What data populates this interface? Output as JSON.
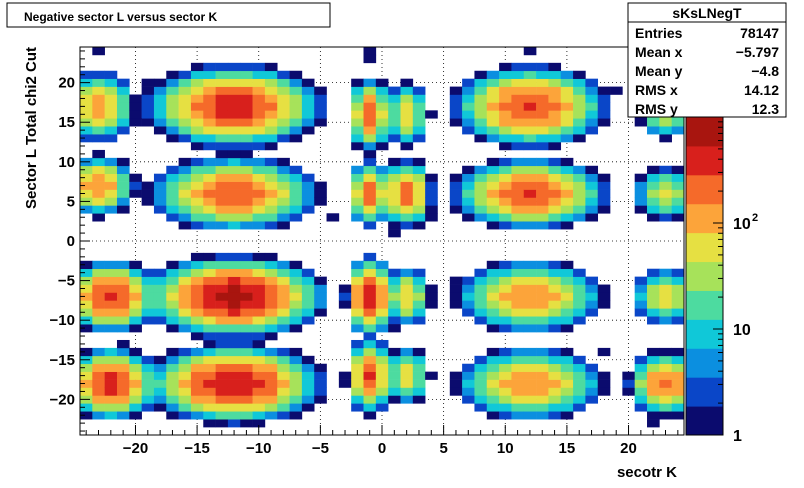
{
  "title": "Negative sector L versus sector K",
  "stats": {
    "name": "sKsLNegT",
    "rows": [
      {
        "label": "Entries",
        "value": "78147"
      },
      {
        "label": "Mean x",
        "value": "−5.797"
      },
      {
        "label": "Mean y",
        "value": "−4.8"
      },
      {
        "label": "RMS x",
        "value": "14.12"
      },
      {
        "label": "RMS y",
        "value": "12.3"
      }
    ]
  },
  "chart_data": {
    "type": "heatmap",
    "title": "Negative sector L versus sector K",
    "xlabel": "secotr K",
    "ylabel": "Sector L  Total chi2 Cut",
    "xlim": [
      -24.5,
      24.5
    ],
    "ylim": [
      -24.5,
      24.5
    ],
    "x_ticks": [
      -20,
      -15,
      -10,
      -5,
      0,
      5,
      10,
      15,
      20
    ],
    "y_ticks": [
      -20,
      -15,
      -10,
      -5,
      0,
      5,
      10,
      15,
      20
    ],
    "x_tick_labels": [
      "−20",
      "−15",
      "−10",
      "−5",
      "0",
      "5",
      "10",
      "15",
      "20"
    ],
    "y_tick_labels": [
      "−20",
      "−15",
      "−10",
      "−5",
      "0",
      "5",
      "10",
      "15",
      "20"
    ],
    "grid": true,
    "z_scale": "log",
    "zlim": [
      1,
      1000
    ],
    "z_tick_labels": [
      {
        "value": 1,
        "label": "1"
      },
      {
        "value": 10,
        "label": "10"
      },
      {
        "value": 100,
        "label": "10",
        "exponent": "2"
      }
    ],
    "palette": [
      "#0b0b6e",
      "#0a46c8",
      "#0b8fe0",
      "#10c8d8",
      "#4ddba0",
      "#a7e25a",
      "#e6e042",
      "#fca43a",
      "#f56a2a",
      "#d8201c",
      "#a8150f"
    ],
    "clusters": [
      {
        "cx": -22,
        "cy": -18,
        "peak": 400,
        "sx": 1.2,
        "sy": 1.4
      },
      {
        "cx": -12,
        "cy": -18,
        "peak": 500,
        "sx": 2.2,
        "sy": 1.5
      },
      {
        "cx": -1,
        "cy": -17,
        "peak": 300,
        "sx": 0.6,
        "sy": 1.5
      },
      {
        "cx": 2,
        "cy": -17,
        "peak": 60,
        "sx": 0.7,
        "sy": 1.3
      },
      {
        "cx": 12,
        "cy": -18,
        "peak": 150,
        "sx": 2.0,
        "sy": 1.5
      },
      {
        "cx": 23,
        "cy": -18,
        "peak": 200,
        "sx": 1.0,
        "sy": 1.3
      },
      {
        "cx": -22,
        "cy": -7,
        "peak": 350,
        "sx": 1.2,
        "sy": 1.4
      },
      {
        "cx": -12,
        "cy": -7,
        "peak": 700,
        "sx": 2.2,
        "sy": 1.5
      },
      {
        "cx": -1,
        "cy": -7,
        "peak": 500,
        "sx": 0.6,
        "sy": 1.5
      },
      {
        "cx": 2,
        "cy": -7,
        "peak": 80,
        "sx": 0.7,
        "sy": 1.3
      },
      {
        "cx": 12,
        "cy": -7,
        "peak": 150,
        "sx": 2.0,
        "sy": 1.5
      },
      {
        "cx": 23,
        "cy": -7,
        "peak": 60,
        "sx": 1.0,
        "sy": 1.3
      },
      {
        "cx": -23,
        "cy": 7,
        "peak": 150,
        "sx": 1.0,
        "sy": 1.3
      },
      {
        "cx": -12,
        "cy": 6,
        "peak": 250,
        "sx": 2.2,
        "sy": 1.5
      },
      {
        "cx": -1,
        "cy": 6,
        "peak": 200,
        "sx": 0.6,
        "sy": 1.4
      },
      {
        "cx": 2,
        "cy": 6,
        "peak": 200,
        "sx": 0.7,
        "sy": 1.4
      },
      {
        "cx": 12,
        "cy": 6,
        "peak": 300,
        "sx": 2.0,
        "sy": 1.4
      },
      {
        "cx": 23,
        "cy": 6,
        "peak": 60,
        "sx": 0.9,
        "sy": 1.2
      },
      {
        "cx": -23,
        "cy": 17,
        "peak": 120,
        "sx": 1.0,
        "sy": 1.5
      },
      {
        "cx": -12,
        "cy": 17,
        "peak": 400,
        "sx": 2.2,
        "sy": 1.6
      },
      {
        "cx": -1,
        "cy": 16,
        "peak": 200,
        "sx": 0.6,
        "sy": 1.5
      },
      {
        "cx": 2,
        "cy": 16,
        "peak": 60,
        "sx": 0.7,
        "sy": 1.5
      },
      {
        "cx": 12,
        "cy": 17,
        "peak": 300,
        "sx": 2.0,
        "sy": 1.6
      },
      {
        "cx": 23,
        "cy": 16,
        "peak": 40,
        "sx": 0.8,
        "sy": 1.2
      }
    ],
    "isolated_cells": [
      [
        -23,
        24
      ],
      [
        -1,
        24
      ],
      [
        -1,
        23
      ],
      [
        12,
        24
      ],
      [
        -19,
        20
      ],
      [
        -17,
        18
      ],
      [
        -8,
        18
      ],
      [
        18,
        18
      ],
      [
        19,
        19
      ],
      [
        8,
        17
      ],
      [
        9,
        16
      ],
      [
        -20,
        15
      ],
      [
        -17,
        4
      ],
      [
        -6,
        5
      ],
      [
        -4,
        3
      ],
      [
        1,
        1
      ],
      [
        4,
        3
      ],
      [
        6,
        5
      ],
      [
        7,
        4
      ],
      [
        10,
        3
      ],
      [
        15,
        3
      ],
      [
        -7,
        4
      ],
      [
        -6,
        -5
      ],
      [
        6,
        -5
      ],
      [
        7,
        -6
      ],
      [
        17,
        -5
      ],
      [
        16,
        -8
      ],
      [
        9,
        -8
      ],
      [
        -20,
        -9
      ],
      [
        -16,
        -10
      ],
      [
        -8,
        -10
      ],
      [
        -21,
        -20
      ],
      [
        -14,
        -22
      ],
      [
        -10,
        -22
      ],
      [
        -5,
        -17
      ],
      [
        7,
        -16
      ],
      [
        7,
        -19
      ],
      [
        17,
        -17
      ],
      [
        -1,
        -20
      ],
      [
        22,
        -23
      ],
      [
        1,
        -11
      ],
      [
        -1,
        -11
      ],
      [
        -12,
        -13
      ],
      [
        -23,
        -15
      ],
      [
        -19,
        -17
      ],
      [
        -18,
        -21
      ],
      [
        14,
        -14
      ],
      [
        18,
        -14
      ],
      [
        -21,
        -13
      ],
      [
        11,
        -14
      ]
    ]
  }
}
